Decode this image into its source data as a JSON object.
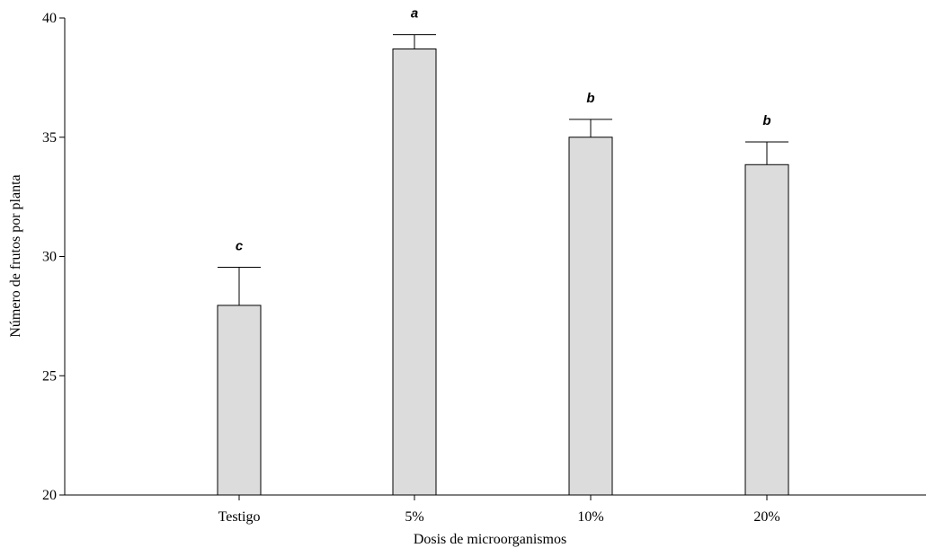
{
  "chart_data": {
    "type": "bar",
    "categories": [
      "Testigo",
      "5%",
      "10%",
      "20%"
    ],
    "values": [
      27.95,
      38.7,
      35.0,
      33.85
    ],
    "errors": [
      1.6,
      0.6,
      0.75,
      0.95
    ],
    "significance_labels": [
      "c",
      "a",
      "b",
      "b"
    ],
    "xlabel": "Dosis de microorganismos",
    "ylabel": "Número de frutos por planta",
    "ylim": [
      20,
      40
    ],
    "yticks": [
      "20",
      "25",
      "30",
      "35",
      "40"
    ],
    "grid": false,
    "bar_color": "#dcdcdc",
    "edge_color": "#000000"
  }
}
